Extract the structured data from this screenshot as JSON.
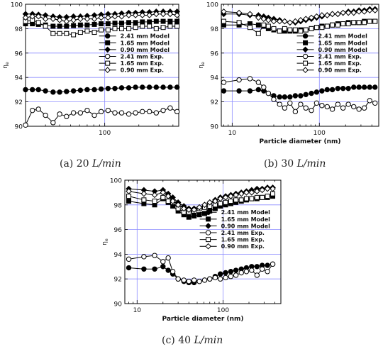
{
  "chart_data": [
    {
      "type": "line",
      "caption_prefix": "(a) 20 ",
      "caption_italic": "L/min",
      "title": "",
      "xlabel": "",
      "ylabel": "η",
      "ylabel_sub": "e",
      "xscale": "log",
      "xlim": [
        20,
        450
      ],
      "ylim": [
        90,
        100
      ],
      "xticks": [
        100
      ],
      "xtick_labels": [
        "100"
      ],
      "yticks": [
        90,
        92,
        94,
        96,
        98,
        100
      ],
      "grid": true,
      "legend_position": "center-right",
      "x": [
        20,
        23,
        26,
        30,
        35,
        40,
        46,
        53,
        61,
        70,
        81,
        93,
        107,
        123,
        141,
        163,
        187,
        215,
        248,
        285,
        328,
        378,
        435
      ],
      "series": [
        {
          "name": "2.41 mm Model",
          "marker": "filled-circle",
          "values": [
            93.0,
            93.0,
            93.0,
            92.9,
            92.8,
            92.8,
            92.85,
            92.9,
            92.95,
            93.0,
            93.0,
            93.05,
            93.1,
            93.1,
            93.15,
            93.15,
            93.2,
            93.2,
            93.2,
            93.2,
            93.2,
            93.2,
            93.2
          ]
        },
        {
          "name": "1.65 mm Model",
          "marker": "filled-square",
          "values": [
            98.4,
            98.4,
            98.35,
            98.3,
            98.2,
            98.2,
            98.2,
            98.25,
            98.3,
            98.3,
            98.35,
            98.4,
            98.4,
            98.45,
            98.45,
            98.5,
            98.5,
            98.55,
            98.55,
            98.6,
            98.6,
            98.6,
            98.6
          ]
        },
        {
          "name": "0.90 mm Model",
          "marker": "filled-diamond",
          "values": [
            99.2,
            99.2,
            99.15,
            99.1,
            99.0,
            98.95,
            98.95,
            99.0,
            99.0,
            99.05,
            99.1,
            99.15,
            99.2,
            99.2,
            99.25,
            99.3,
            99.3,
            99.35,
            99.35,
            99.4,
            99.4,
            99.4,
            99.4
          ]
        },
        {
          "name": "2.41 mm Exp.",
          "marker": "open-circle",
          "values": [
            90.1,
            91.3,
            91.4,
            90.9,
            90.3,
            91.0,
            90.8,
            91.1,
            91.1,
            91.3,
            90.9,
            91.2,
            91.3,
            91.1,
            91.1,
            91.0,
            91.1,
            91.2,
            91.2,
            91.1,
            91.3,
            91.5,
            91.2
          ]
        },
        {
          "name": "1.65 mm Exp.",
          "marker": "open-square",
          "values": [
            98.6,
            98.7,
            98.5,
            98.2,
            97.6,
            97.6,
            97.6,
            97.5,
            97.7,
            97.8,
            97.7,
            97.9,
            97.9,
            98.0,
            98.0,
            98.0,
            98.1,
            98.2,
            98.2,
            98.0,
            98.1,
            98.2,
            98.2
          ]
        },
        {
          "name": "0.90 mm Exp.",
          "marker": "open-diamond",
          "values": [
            98.9,
            99.0,
            99.0,
            98.8,
            98.8,
            98.7,
            98.6,
            98.7,
            98.8,
            98.8,
            98.8,
            98.9,
            98.9,
            99.0,
            99.0,
            99.1,
            99.1,
            99.1,
            99.1,
            99.2,
            99.2,
            99.2,
            99.1
          ]
        }
      ]
    },
    {
      "type": "line",
      "caption_prefix": "(b) 30 ",
      "caption_italic": "L/min",
      "title": "",
      "xlabel": "Particle diameter (nm)",
      "ylabel": "η",
      "ylabel_sub": "e",
      "xscale": "log",
      "xlim": [
        7.5,
        480
      ],
      "ylim": [
        90,
        100
      ],
      "xticks": [
        10,
        100
      ],
      "xtick_labels": [
        "10",
        "100"
      ],
      "yticks": [
        90,
        92,
        94,
        96,
        98,
        100
      ],
      "grid": true,
      "legend_position": "center-right",
      "x": [
        8,
        12,
        16,
        20,
        23,
        26,
        30,
        35,
        40,
        46,
        53,
        61,
        70,
        81,
        93,
        107,
        123,
        141,
        163,
        187,
        215,
        248,
        285,
        328,
        378,
        435
      ],
      "series": [
        {
          "name": "2.41 mm Model",
          "marker": "filled-circle",
          "values": [
            92.9,
            92.9,
            92.9,
            93.0,
            92.9,
            92.7,
            92.5,
            92.4,
            92.4,
            92.4,
            92.5,
            92.5,
            92.6,
            92.7,
            92.8,
            92.9,
            93.0,
            93.0,
            93.1,
            93.1,
            93.1,
            93.2,
            93.2,
            93.2,
            93.2,
            93.2
          ]
        },
        {
          "name": "1.65 mm Model",
          "marker": "filled-square",
          "values": [
            98.3,
            98.3,
            98.4,
            98.3,
            98.2,
            98.0,
            97.9,
            97.8,
            97.8,
            97.8,
            97.8,
            97.9,
            97.9,
            98.0,
            98.1,
            98.2,
            98.2,
            98.3,
            98.4,
            98.4,
            98.5,
            98.5,
            98.5,
            98.6,
            98.6,
            98.6
          ]
        },
        {
          "name": "0.90 mm Model",
          "marker": "filled-diamond",
          "values": [
            99.2,
            99.2,
            99.1,
            99.1,
            99.0,
            98.9,
            98.8,
            98.7,
            98.6,
            98.5,
            98.5,
            98.6,
            98.7,
            98.8,
            98.9,
            99.0,
            99.1,
            99.2,
            99.2,
            99.3,
            99.4,
            99.4,
            99.5,
            99.5,
            99.6,
            99.6
          ]
        },
        {
          "name": "2.41 mm Exp.",
          "marker": "open-circle",
          "values": [
            93.6,
            93.8,
            93.9,
            93.6,
            93.2,
            92.7,
            92.2,
            91.8,
            91.5,
            91.9,
            91.2,
            91.8,
            91.5,
            91.3,
            91.9,
            91.7,
            91.6,
            91.4,
            91.8,
            91.5,
            91.8,
            91.6,
            91.4,
            91.5,
            92.1,
            91.9
          ]
        },
        {
          "name": "1.65 mm Exp.",
          "marker": "open-square",
          "values": [
            98.6,
            98.5,
            98.1,
            97.6,
            98.3,
            98.2,
            98.0,
            97.8,
            98.0,
            97.9,
            97.9,
            97.8,
            97.9,
            98.0,
            98.1,
            98.1,
            98.2,
            98.3,
            98.3,
            98.4,
            98.4,
            98.5,
            98.5,
            98.5,
            98.6,
            98.6
          ]
        },
        {
          "name": "0.90 mm Exp.",
          "marker": "open-diamond",
          "values": [
            99.4,
            99.3,
            99.2,
            98.9,
            98.8,
            98.7,
            98.6,
            98.6,
            98.6,
            98.5,
            98.6,
            98.7,
            98.8,
            98.9,
            99.0,
            99.1,
            99.1,
            99.2,
            99.2,
            99.3,
            99.3,
            99.3,
            99.4,
            99.4,
            99.5,
            99.5
          ]
        }
      ]
    },
    {
      "type": "line",
      "caption_prefix": "(c) 40 ",
      "caption_italic": "L/min",
      "title": "",
      "xlabel": "Particle diameter (nm)",
      "ylabel": "η",
      "ylabel_sub": "e",
      "xscale": "log",
      "xlim": [
        7.2,
        470
      ],
      "ylim": [
        90,
        100
      ],
      "xticks": [
        10,
        100
      ],
      "xtick_labels": [
        "10",
        "100"
      ],
      "yticks": [
        90,
        92,
        94,
        96,
        98,
        100
      ],
      "grid": true,
      "legend_position": "center-right",
      "x": [
        8,
        12,
        16,
        20,
        23,
        26,
        30,
        35,
        40,
        46,
        53,
        61,
        70,
        81,
        93,
        107,
        123,
        141,
        163,
        187,
        215,
        248,
        285,
        328,
        378
      ],
      "series": [
        {
          "name": "2.41 mm Model",
          "marker": "filled-circle",
          "values": [
            92.9,
            92.8,
            92.8,
            93.0,
            92.7,
            92.4,
            92.0,
            91.8,
            91.7,
            91.7,
            91.8,
            91.9,
            92.0,
            92.2,
            92.4,
            92.5,
            92.6,
            92.7,
            92.8,
            92.9,
            93.0,
            93.0,
            93.1,
            93.1,
            93.2
          ]
        },
        {
          "name": "1.65 mm Model",
          "marker": "filled-square",
          "values": [
            98.3,
            98.1,
            98.0,
            98.5,
            98.2,
            97.9,
            97.5,
            97.2,
            97.0,
            97.1,
            97.2,
            97.3,
            97.5,
            97.7,
            97.9,
            98.0,
            98.1,
            98.2,
            98.3,
            98.4,
            98.5,
            98.5,
            98.6,
            98.6,
            98.7
          ]
        },
        {
          "name": "0.90 mm Model",
          "marker": "filled-diamond",
          "values": [
            99.3,
            99.2,
            99.1,
            99.2,
            98.9,
            98.6,
            98.2,
            97.9,
            97.7,
            97.7,
            97.8,
            98.0,
            98.2,
            98.4,
            98.6,
            98.7,
            98.8,
            98.9,
            99.0,
            99.1,
            99.2,
            99.3,
            99.3,
            99.4,
            99.4
          ]
        },
        {
          "name": "2.41 mm Exp.",
          "marker": "open-circle",
          "values": [
            93.6,
            93.8,
            93.9,
            93.4,
            93.7,
            92.6,
            92.0,
            91.9,
            91.8,
            91.9,
            91.8,
            91.9,
            92.0,
            92.1,
            92.0,
            92.1,
            92.2,
            92.3,
            92.5,
            92.6,
            92.7,
            92.3,
            92.8,
            92.6,
            93.2
          ]
        },
        {
          "name": "1.65 mm Exp.",
          "marker": "open-square",
          "values": [
            98.7,
            98.4,
            98.3,
            98.6,
            98.3,
            98.2,
            97.7,
            97.4,
            97.4,
            97.5,
            97.7,
            97.8,
            97.9,
            98.0,
            98.1,
            98.2,
            98.3,
            98.4,
            98.4,
            98.5,
            98.5,
            98.6,
            98.6,
            98.7,
            98.9
          ]
        },
        {
          "name": "0.90 mm Exp.",
          "marker": "open-diamond",
          "values": [
            99.1,
            98.9,
            98.8,
            99.0,
            98.7,
            98.3,
            98.0,
            97.7,
            97.6,
            97.6,
            97.8,
            98.0,
            98.2,
            98.3,
            98.5,
            98.6,
            98.7,
            98.8,
            98.9,
            99.0,
            99.0,
            99.1,
            99.2,
            99.3,
            99.3
          ]
        }
      ]
    }
  ]
}
